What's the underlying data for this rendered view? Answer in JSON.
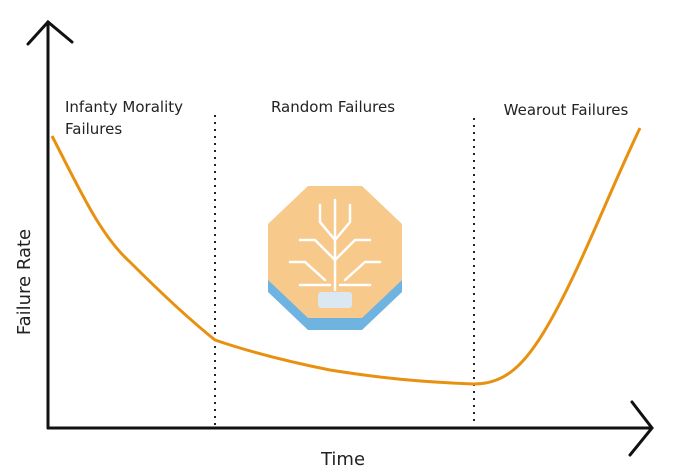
{
  "axes": {
    "y_label": "Failure Rate",
    "x_label": "Time"
  },
  "regions": [
    {
      "label_lines": [
        "Infanty Morality",
        "Failures"
      ]
    },
    {
      "label": "Random Failures"
    },
    {
      "label": "Wearout Failures"
    }
  ]
}
